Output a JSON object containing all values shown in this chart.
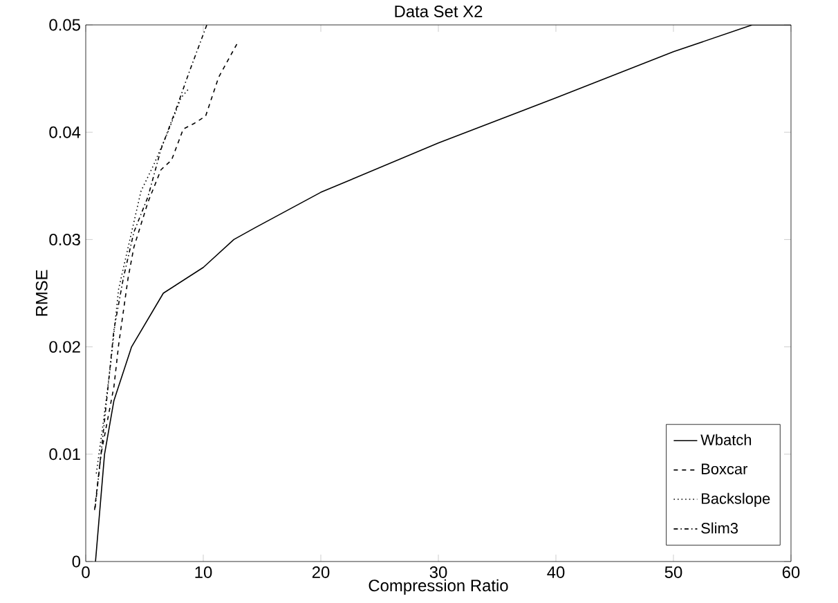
{
  "chart_data": {
    "type": "line",
    "title": "Data Set X2",
    "xlabel": "Compression Ratio",
    "ylabel": "RMSE",
    "xlim": [
      0,
      60
    ],
    "ylim": [
      0,
      0.05
    ],
    "xticks": [
      0,
      10,
      20,
      30,
      40,
      50,
      60
    ],
    "yticks": [
      0,
      0.01,
      0.02,
      0.03,
      0.04,
      0.05
    ],
    "grid": false,
    "legend": "bottom right",
    "marker": "none",
    "series": [
      {
        "name": "Wbatch",
        "color": "#000000",
        "line_style": "solid",
        "x": [
          0.83,
          1.6,
          2.4,
          3.9,
          6.6,
          10,
          12.6,
          14.4,
          20,
          30,
          40,
          50,
          56.7,
          60
        ],
        "values": [
          0,
          0.01,
          0.015,
          0.02,
          0.025,
          0.0274,
          0.03,
          0.0311,
          0.0344,
          0.039,
          0.0432,
          0.0475,
          0.05,
          0.05
        ]
      },
      {
        "name": "Boxcar",
        "color": "#000000",
        "line_style": "dashed",
        "x": [
          0.75,
          1.3,
          2.4,
          2.8,
          3.6,
          4.1,
          5.3,
          6.4,
          7.3,
          8.3,
          9.2,
          10.2,
          11.3,
          13.0
        ],
        "values": [
          0.0048,
          0.01,
          0.0163,
          0.0202,
          0.0264,
          0.0293,
          0.0335,
          0.0365,
          0.0374,
          0.0403,
          0.0408,
          0.0415,
          0.0451,
          0.0485
        ]
      },
      {
        "name": "Backslope",
        "color": "#000000",
        "line_style": "dotted",
        "x": [
          0.9,
          1.5,
          2.1,
          2.8,
          3.8,
          4.7,
          5.8,
          7.1,
          8.1,
          8.8
        ],
        "values": [
          0.0082,
          0.013,
          0.0182,
          0.0254,
          0.0302,
          0.0345,
          0.037,
          0.0403,
          0.0432,
          0.0441
        ]
      },
      {
        "name": "Slim3",
        "color": "#000000",
        "line_style": "dashdot",
        "x": [
          0.8,
          1.3,
          1.9,
          2.4,
          3.2,
          4.1,
          5.3,
          6.4,
          7.7,
          8.8,
          10.3
        ],
        "values": [
          0.005,
          0.01,
          0.0163,
          0.0216,
          0.0264,
          0.0307,
          0.034,
          0.0384,
          0.0422,
          0.0456,
          0.05
        ]
      }
    ]
  }
}
